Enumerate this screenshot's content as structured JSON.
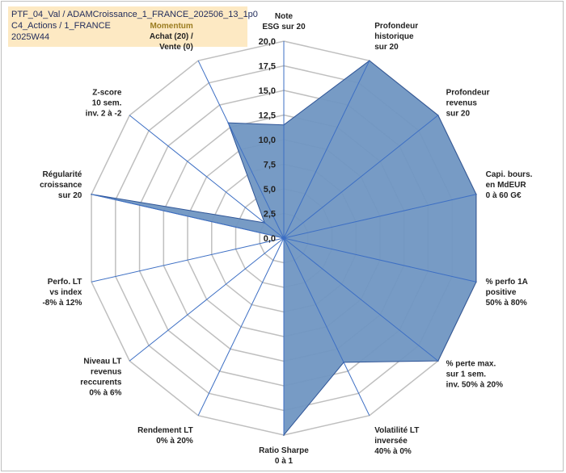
{
  "title_box": {
    "line1": "PTF_04_Val / ADAMCroissance_1_FRANCE_202506_13_1p0",
    "line2": "C4_Actions / 1_FRANCE",
    "line3": "2025W44"
  },
  "colors": {
    "fill": "#7096c2",
    "stroke": "#2f5597",
    "spoke": "#3d6fc4",
    "grid": "#bfbfbf",
    "title_bg": "#fde9c3",
    "highlight_label": "#9b7c20"
  },
  "chart_data": {
    "type": "radar",
    "title": "",
    "rmin": 0,
    "rmax": 20,
    "tick_step": 2.5,
    "tick_labels": [
      "0,0",
      "2,5",
      "5,0",
      "7,5",
      "10,0",
      "12,5",
      "15,0",
      "17,5",
      "20,0"
    ],
    "grid": true,
    "categories": [
      [
        "Note",
        "ESG sur 20"
      ],
      [
        "Profondeur",
        "historique",
        "sur 20"
      ],
      [
        "Profondeur",
        "revenus",
        "sur 20"
      ],
      [
        "Capi. bours.",
        "en MdEUR",
        "0 à 60 G€"
      ],
      [
        "% perfo 1A",
        "positive",
        "50% à 80%"
      ],
      [
        "% perte max.",
        "sur 1 sem.",
        "inv. 50% à 20%"
      ],
      [
        "Volatilité LT",
        "inversée",
        "40% à 0%"
      ],
      [
        "Ratio Sharpe",
        "0 à 1"
      ],
      [
        "Rendement LT",
        "0% à 20%"
      ],
      [
        "Niveau LT",
        "revenus",
        "reccurents",
        "0% à 6%"
      ],
      [
        "Perfo. LT",
        "vs index",
        "-8% à 12%"
      ],
      [
        "Régularité",
        "croissance",
        "sur 20"
      ],
      [
        "Z-score",
        "10 sem.",
        "inv. 2 à -2"
      ],
      [
        "Momentum",
        "Achat (20) /",
        "Vente (0)"
      ]
    ],
    "highlight_category_line": "Momentum",
    "series": [
      {
        "values": [
          11.5,
          20,
          20,
          20,
          20,
          20,
          14,
          20,
          0,
          0,
          0,
          20,
          2.5,
          13
        ]
      }
    ]
  }
}
